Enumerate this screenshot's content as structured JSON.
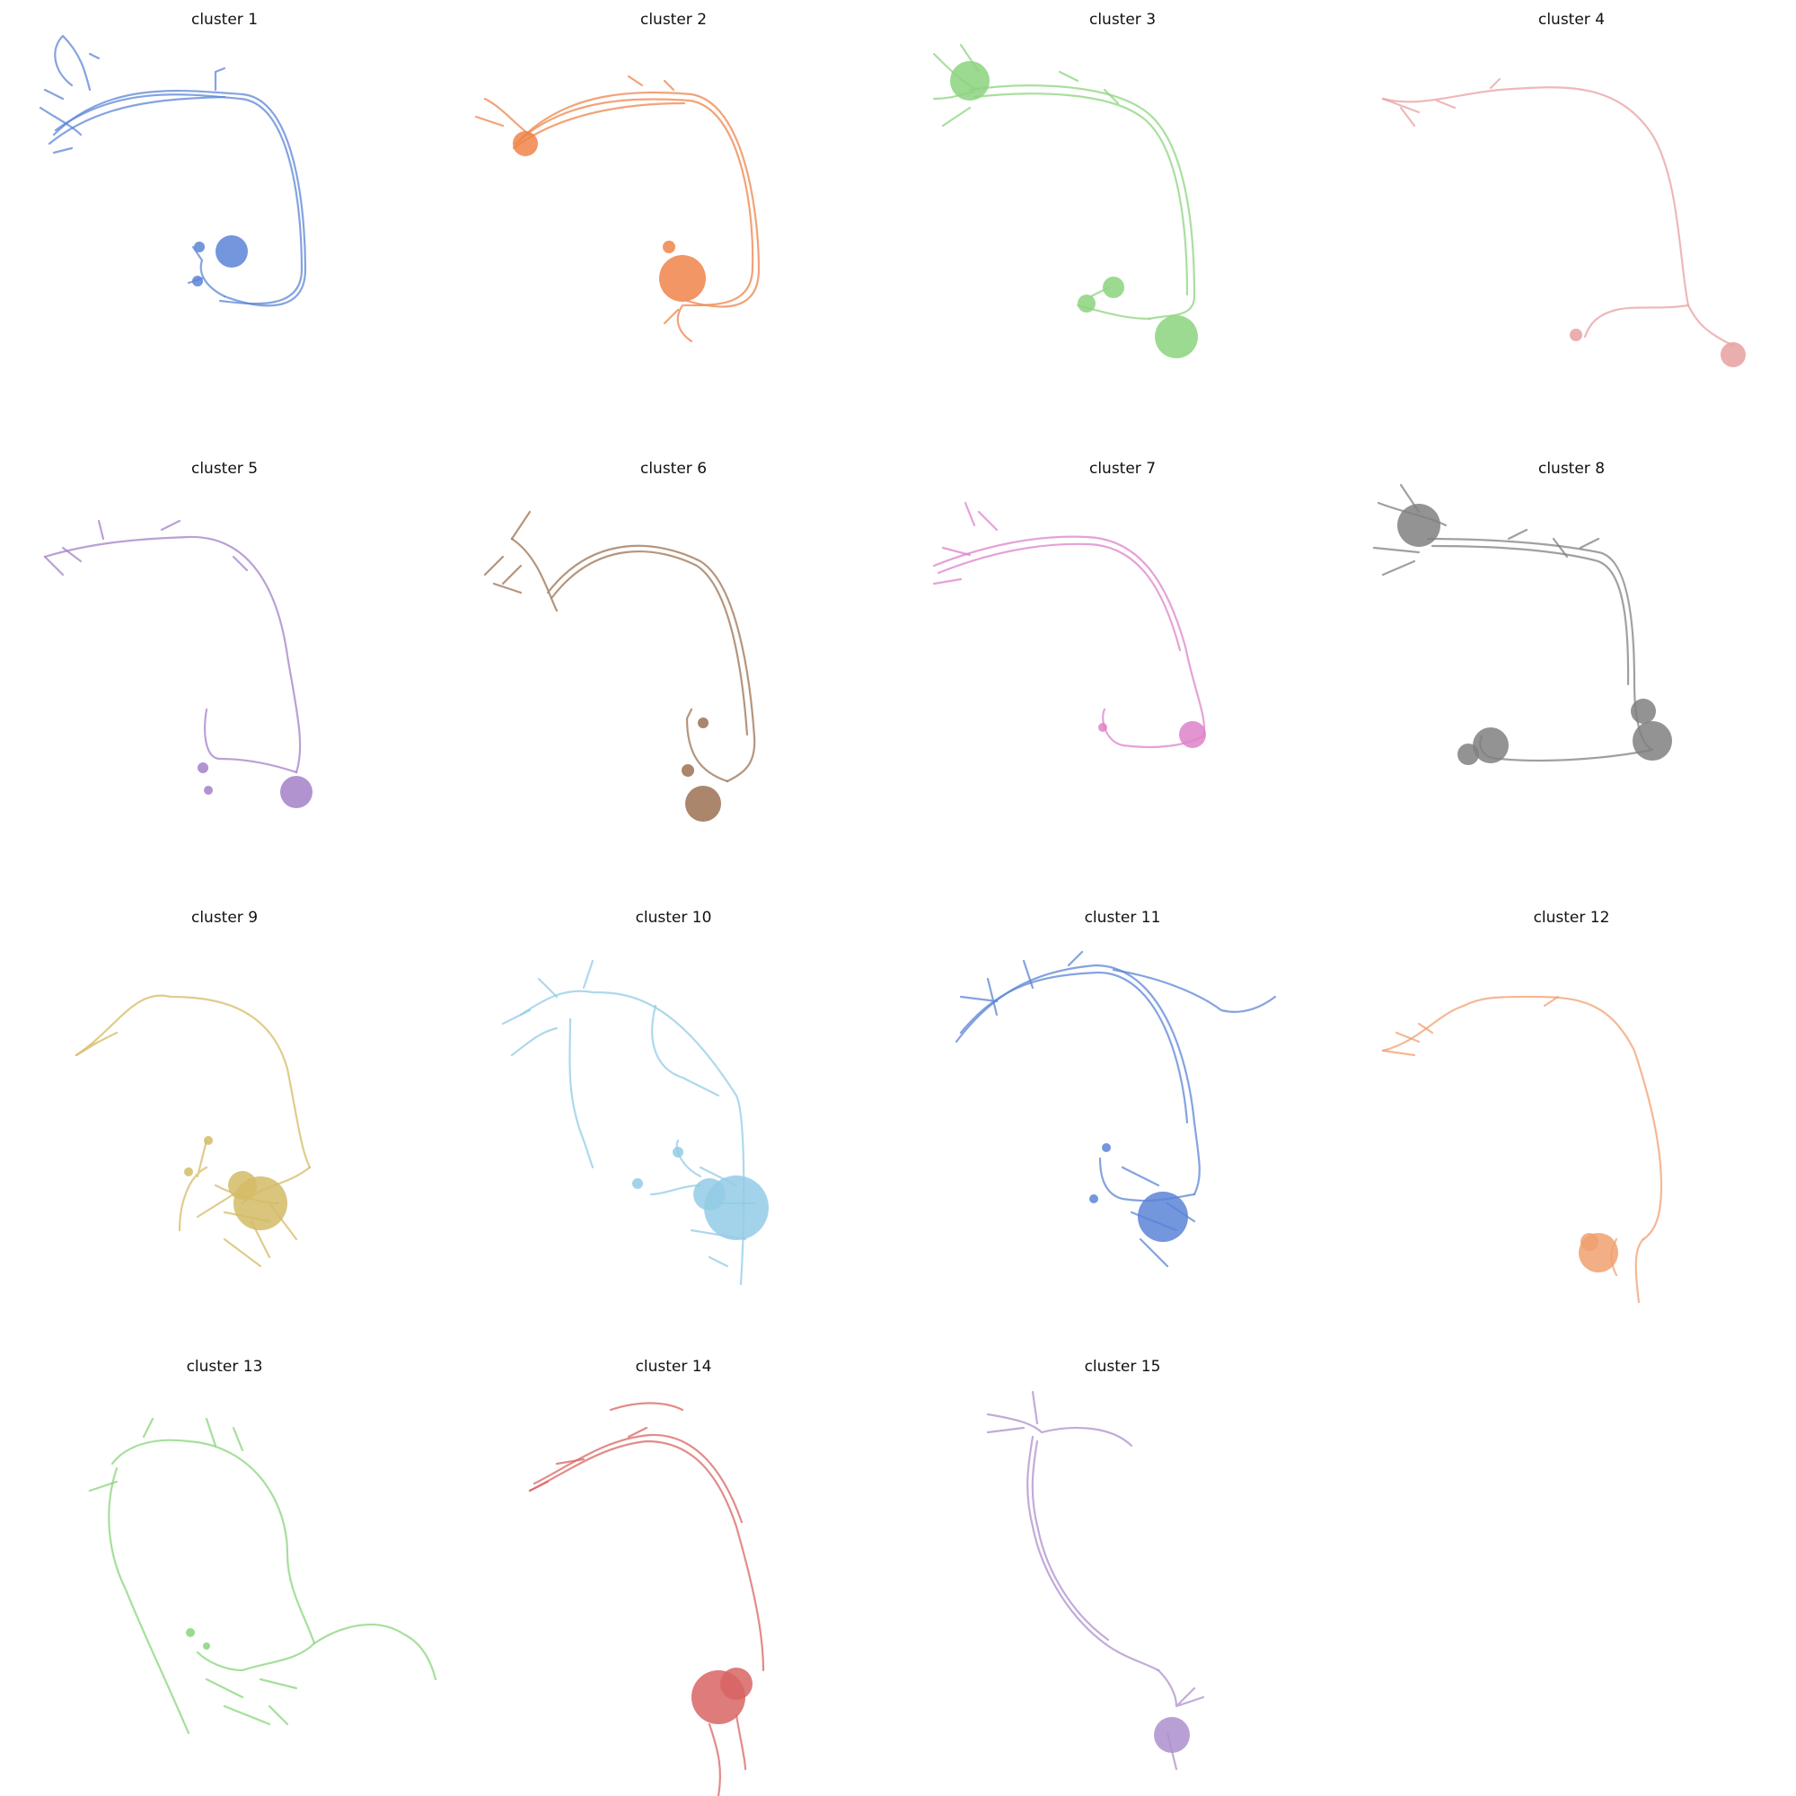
{
  "panels": [
    {
      "title": "cluster 1",
      "color": "#5b84d6"
    },
    {
      "title": "cluster 2",
      "color": "#ee8449"
    },
    {
      "title": "cluster 3",
      "color": "#8cd47e"
    },
    {
      "title": "cluster 4",
      "color": "#e8a0a0"
    },
    {
      "title": "cluster 5",
      "color": "#a380c8"
    },
    {
      "title": "cluster 6",
      "color": "#9c7152"
    },
    {
      "title": "cluster 7",
      "color": "#dd82c9"
    },
    {
      "title": "cluster 8",
      "color": "#808080"
    },
    {
      "title": "cluster 9",
      "color": "#d4bb66"
    },
    {
      "title": "cluster 10",
      "color": "#93cbe6"
    },
    {
      "title": "cluster 11",
      "color": "#5b84d6"
    },
    {
      "title": "cluster 12",
      "color": "#f0a070"
    },
    {
      "title": "cluster 13",
      "color": "#88d47a"
    },
    {
      "title": "cluster 14",
      "color": "#d86464"
    },
    {
      "title": "cluster 15",
      "color": "#ad8fcc"
    }
  ]
}
